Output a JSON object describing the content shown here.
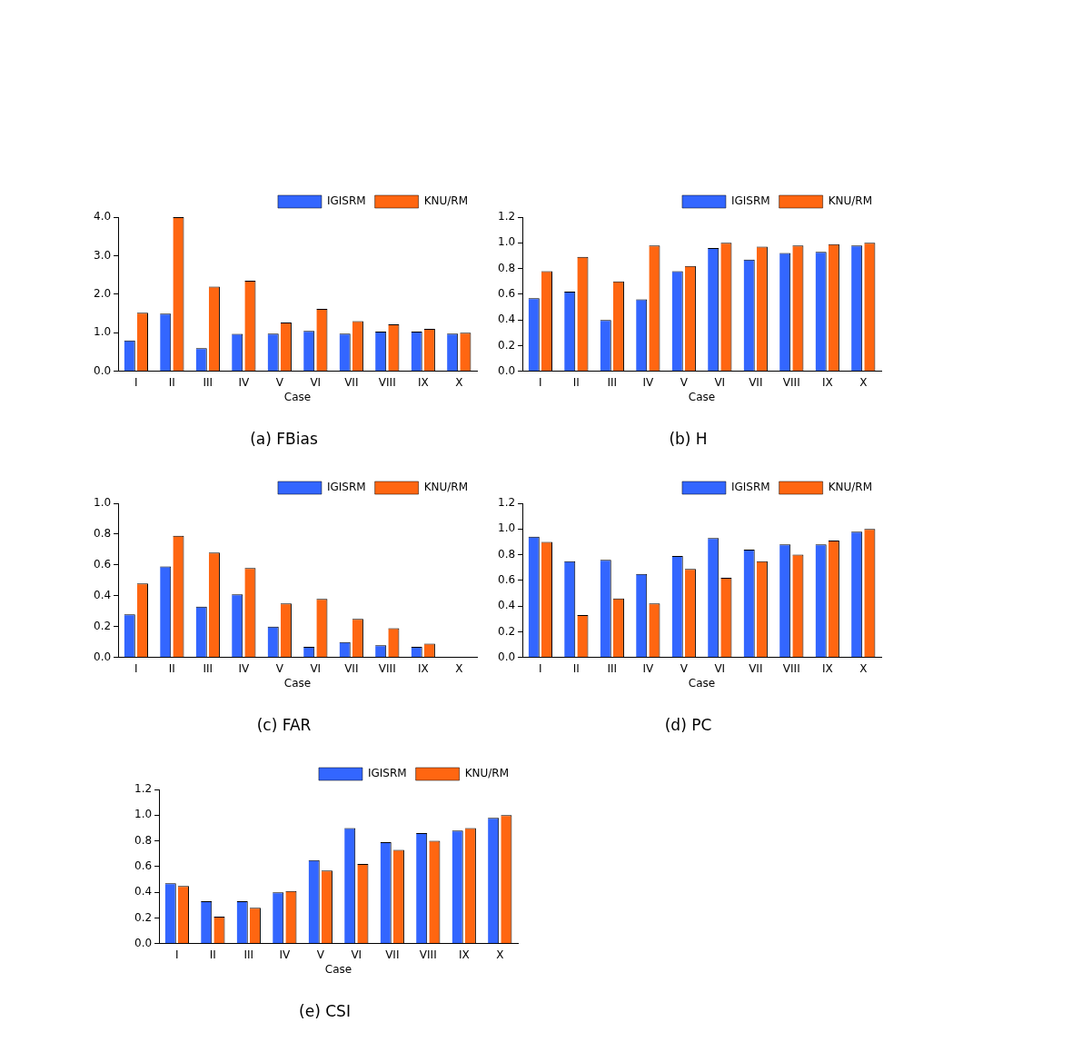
{
  "chart_data": [
    {
      "type": "bar",
      "title": "(a) FBias",
      "x_label": "Case",
      "categories": [
        "I",
        "II",
        "III",
        "IV",
        "V",
        "VI",
        "VII",
        "VIII",
        "IX",
        "X"
      ],
      "series": [
        {
          "name": "IGISRM",
          "color": "#3366ff",
          "values": [
            0.8,
            1.5,
            0.6,
            0.97,
            0.98,
            1.05,
            0.98,
            1.03,
            1.03,
            0.98
          ]
        },
        {
          "name": "KNU/RM",
          "color": "#ff6611",
          "values": [
            1.52,
            4.0,
            2.2,
            2.35,
            1.27,
            1.62,
            1.3,
            1.22,
            1.1,
            1.0
          ]
        }
      ],
      "ylim": [
        0,
        4
      ],
      "yticks": [
        {
          "value": 0,
          "label": "0.0"
        },
        {
          "value": 1,
          "label": "1.0"
        },
        {
          "value": 2,
          "label": "2.0"
        },
        {
          "value": 3,
          "label": "3.0"
        },
        {
          "value": 4,
          "label": "4.0"
        }
      ],
      "grid": false,
      "legend": "upper right"
    },
    {
      "type": "bar",
      "title": "(b) H",
      "x_label": "Case",
      "categories": [
        "I",
        "II",
        "III",
        "IV",
        "V",
        "VI",
        "VII",
        "VIII",
        "IX",
        "X"
      ],
      "series": [
        {
          "name": "IGISRM",
          "color": "#3366ff",
          "values": [
            0.57,
            0.62,
            0.4,
            0.56,
            0.78,
            0.96,
            0.87,
            0.92,
            0.93,
            0.98
          ]
        },
        {
          "name": "KNU/RM",
          "color": "#ff6611",
          "values": [
            0.78,
            0.89,
            0.7,
            0.98,
            0.82,
            1.0,
            0.97,
            0.98,
            0.99,
            1.0
          ]
        }
      ],
      "ylim": [
        0,
        1.2
      ],
      "yticks": [
        {
          "value": 0,
          "label": "0.0"
        },
        0.2,
        0.4,
        0.6,
        0.8,
        {
          "value": 1,
          "label": "1.0"
        },
        1.2
      ],
      "grid": false,
      "legend": "upper right"
    },
    {
      "type": "bar",
      "title": "(c) FAR",
      "x_label": "Case",
      "categories": [
        "I",
        "II",
        "III",
        "IV",
        "V",
        "VI",
        "VII",
        "VIII",
        "IX",
        "X"
      ],
      "series": [
        {
          "name": "IGISRM",
          "color": "#3366ff",
          "values": [
            0.28,
            0.59,
            0.33,
            0.41,
            0.2,
            0.07,
            0.1,
            0.08,
            0.07,
            0
          ]
        },
        {
          "name": "KNU/RM",
          "color": "#ff6611",
          "values": [
            0.48,
            0.79,
            0.68,
            0.58,
            0.35,
            0.38,
            0.25,
            0.19,
            0.09,
            0
          ]
        }
      ],
      "ylim": [
        0,
        1
      ],
      "yticks": [
        {
          "value": 0,
          "label": "0.0"
        },
        0.2,
        0.4,
        0.6,
        0.8,
        {
          "value": 1,
          "label": "1.0"
        }
      ],
      "grid": false,
      "legend": "upper right"
    },
    {
      "type": "bar",
      "title": "(d) PC",
      "x_label": "Case",
      "categories": [
        "I",
        "II",
        "III",
        "IV",
        "V",
        "VI",
        "VII",
        "VIII",
        "IX",
        "X"
      ],
      "series": [
        {
          "name": "IGISRM",
          "color": "#3366ff",
          "values": [
            0.94,
            0.75,
            0.76,
            0.65,
            0.79,
            0.93,
            0.84,
            0.88,
            0.88,
            0.98
          ]
        },
        {
          "name": "KNU/RM",
          "color": "#ff6611",
          "values": [
            0.9,
            0.33,
            0.46,
            0.42,
            0.69,
            0.62,
            0.75,
            0.8,
            0.91,
            1.0
          ]
        }
      ],
      "ylim": [
        0,
        1.2
      ],
      "yticks": [
        {
          "value": 0,
          "label": "0.0"
        },
        0.2,
        0.4,
        0.6,
        0.8,
        {
          "value": 1,
          "label": "1.0"
        },
        1.2
      ],
      "grid": false,
      "legend": "upper right"
    },
    {
      "type": "bar",
      "title": "(e) CSI",
      "x_label": "Case",
      "categories": [
        "I",
        "II",
        "III",
        "IV",
        "V",
        "VI",
        "VII",
        "VIII",
        "IX",
        "X"
      ],
      "series": [
        {
          "name": "IGISRM",
          "color": "#3366ff",
          "values": [
            0.47,
            0.33,
            0.33,
            0.4,
            0.65,
            0.9,
            0.79,
            0.86,
            0.88,
            0.98
          ]
        },
        {
          "name": "KNU/RM",
          "color": "#ff6611",
          "values": [
            0.45,
            0.21,
            0.28,
            0.41,
            0.57,
            0.62,
            0.73,
            0.8,
            0.9,
            1.0
          ]
        }
      ],
      "ylim": [
        0,
        1.2
      ],
      "yticks": [
        {
          "value": 0,
          "label": "0.0"
        },
        0.2,
        0.4,
        0.6,
        0.8,
        {
          "value": 1,
          "label": "1.0"
        },
        1.2
      ],
      "grid": false,
      "legend": "upper right"
    }
  ]
}
